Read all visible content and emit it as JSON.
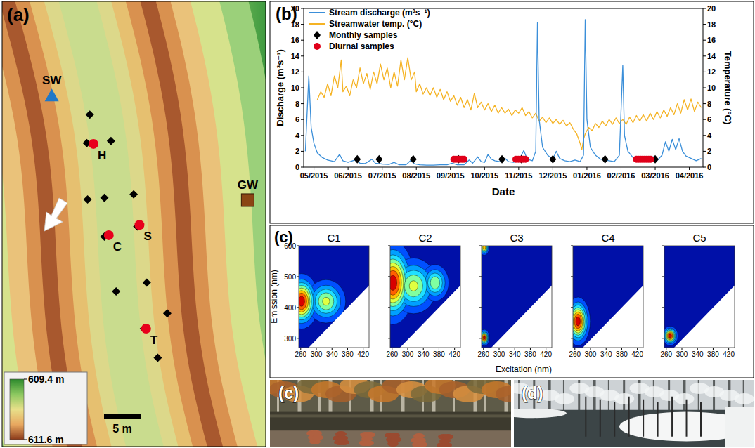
{
  "map": {
    "label": "(a)",
    "colorbar": {
      "ticks": [
        {
          "value": 609.4,
          "label": "609.4 m"
        },
        {
          "value": 611.6,
          "label": "611.6 m"
        }
      ],
      "colors": [
        "#2d8a2d",
        "#8cc860",
        "#e8e08a",
        "#e8a860",
        "#8b3a1a"
      ]
    },
    "scale_bar": {
      "length": 5,
      "label": "5 m"
    },
    "sites": [
      {
        "label": "SW",
        "marker": "triangle",
        "color": "#1f78c8",
        "x": 6.6,
        "y": 13.1
      },
      {
        "label": "GW",
        "marker": "square",
        "color": "#8b4513",
        "x": 33.4,
        "y": 27.4
      },
      {
        "label": "H",
        "marker": "circle",
        "color": "#e8001c",
        "x": 12.3,
        "y": 19.7
      },
      {
        "label": "C",
        "marker": "circle",
        "color": "#e8001c",
        "x": 14.4,
        "y": 32.2
      },
      {
        "label": "S",
        "marker": "circle",
        "color": "#e8001c",
        "x": 18.6,
        "y": 30.8
      },
      {
        "label": "T",
        "marker": "circle",
        "color": "#e8001c",
        "x": 19.5,
        "y": 45.0
      }
    ],
    "wells": [
      [
        11.8,
        15.7
      ],
      [
        11.4,
        19.6
      ],
      [
        14.7,
        19.3
      ],
      [
        11.5,
        27.3
      ],
      [
        13.8,
        27.1
      ],
      [
        17.8,
        26.6
      ],
      [
        13.8,
        32.4
      ],
      [
        18.3,
        31.0
      ],
      [
        15.4,
        39.9
      ],
      [
        19.6,
        38.7
      ],
      [
        22.4,
        42.9
      ],
      [
        19.2,
        45.0
      ],
      [
        21.1,
        49.0
      ]
    ]
  },
  "chart_data": [
    {
      "type": "line",
      "panel_label": "(b)",
      "x_label": "Date",
      "y_label": "Discharge (m³s⁻¹)",
      "y2_label": "Temperature (°C)",
      "xlim": [
        -0.3,
        11.4
      ],
      "xticks": [
        {
          "value": 0,
          "label": "05/2015"
        },
        {
          "value": 1,
          "label": "06/2015"
        },
        {
          "value": 2,
          "label": "07/2015"
        },
        {
          "value": 3,
          "label": "08/2015"
        },
        {
          "value": 4,
          "label": "09/2015"
        },
        {
          "value": 5,
          "label": "10/2015"
        },
        {
          "value": 6,
          "label": "11/2015"
        },
        {
          "value": 7,
          "label": "12/2015"
        },
        {
          "value": 8,
          "label": "01/2016"
        },
        {
          "value": 9,
          "label": "02/2016"
        },
        {
          "value": 10,
          "label": "03/2016"
        },
        {
          "value": 11,
          "label": "04/2016"
        }
      ],
      "ylim": [
        0,
        20
      ],
      "yticks": [
        0,
        2,
        4,
        6,
        8,
        10,
        12,
        14,
        16,
        18,
        20
      ],
      "y2lim": [
        0,
        20
      ],
      "y2ticks": [
        0,
        2,
        4,
        6,
        8,
        10,
        12,
        14,
        16,
        18,
        20
      ],
      "grid": false,
      "legend": "top-left",
      "series": [
        {
          "name": "Stream discharge (m³s⁻¹)",
          "type": "line",
          "color": "#3b8fd9",
          "x": [
            -0.25,
            -0.15,
            -0.08,
            0,
            0.1,
            0.25,
            0.4,
            0.6,
            0.75,
            0.85,
            1.0,
            1.2,
            1.35,
            1.5,
            1.7,
            1.8,
            2.0,
            2.2,
            2.35,
            2.5,
            2.7,
            2.85,
            2.95,
            3.1,
            3.3,
            3.5,
            3.7,
            3.9,
            4.05,
            4.2,
            4.4,
            4.55,
            4.65,
            4.8,
            4.9,
            5.0,
            5.1,
            5.2,
            5.3,
            5.45,
            5.6,
            5.7,
            5.85,
            6.0,
            6.15,
            6.25,
            6.4,
            6.5,
            6.55,
            6.6,
            6.7,
            6.85,
            7.0,
            7.1,
            7.2,
            7.35,
            7.5,
            7.65,
            7.8,
            7.9,
            7.95,
            8.0,
            8.1,
            8.25,
            8.4,
            8.5,
            8.65,
            8.8,
            8.95,
            9.05,
            9.1,
            9.2,
            9.35,
            9.5,
            9.65,
            9.8,
            9.95,
            10.05,
            10.2,
            10.3,
            10.4,
            10.5,
            10.6,
            10.7,
            10.8,
            10.9,
            11.0,
            11.1,
            11.2,
            11.35
          ],
          "values": [
            2.0,
            11.5,
            5,
            3,
            1.8,
            1.2,
            0.9,
            0.7,
            1.6,
            0.8,
            0.6,
            0.9,
            0.5,
            0.45,
            1.0,
            0.5,
            0.4,
            0.35,
            0.6,
            0.3,
            0.3,
            0.9,
            0.4,
            0.3,
            0.25,
            0.25,
            0.3,
            0.3,
            0.5,
            0.3,
            0.3,
            0.9,
            0.5,
            1.3,
            0.7,
            0.6,
            1.6,
            1.0,
            0.8,
            0.7,
            1.1,
            0.7,
            0.6,
            0.8,
            2.1,
            1.0,
            0.8,
            2.0,
            18.2,
            6,
            2.5,
            1.5,
            1.0,
            2.0,
            1.1,
            0.8,
            0.7,
            0.9,
            0.7,
            1.5,
            18.6,
            6,
            2.5,
            1.5,
            1.0,
            0.9,
            0.8,
            0.7,
            1.5,
            12.8,
            4,
            2.0,
            1.2,
            0.9,
            0.8,
            0.7,
            1.3,
            0.8,
            1.5,
            3.2,
            2.0,
            3.5,
            2.2,
            3.6,
            2.0,
            1.4,
            1.2,
            1.0,
            0.8,
            1.1
          ]
        },
        {
          "name": "Streamwater temp. (°C)",
          "type": "line",
          "axis": "y2",
          "color": "#f5b324",
          "x": [
            0.1,
            0.2,
            0.3,
            0.4,
            0.5,
            0.6,
            0.7,
            0.8,
            0.85,
            0.95,
            1.05,
            1.15,
            1.25,
            1.35,
            1.45,
            1.55,
            1.65,
            1.75,
            1.85,
            1.95,
            2.05,
            2.15,
            2.25,
            2.35,
            2.45,
            2.55,
            2.65,
            2.75,
            2.85,
            2.95,
            3.0,
            3.1,
            3.2,
            3.3,
            3.4,
            3.5,
            3.6,
            3.7,
            3.8,
            3.9,
            4.0,
            4.1,
            4.2,
            4.3,
            4.4,
            4.5,
            4.6,
            4.7,
            4.8,
            4.9,
            5.0,
            5.1,
            5.2,
            5.3,
            5.4,
            5.5,
            5.6,
            5.7,
            5.8,
            5.9,
            6.0,
            6.1,
            6.2,
            6.3,
            6.4,
            6.5,
            6.6,
            6.7,
            6.8,
            6.9,
            7.0,
            7.1,
            7.2,
            7.3,
            7.4,
            7.5,
            7.6,
            7.7,
            7.8,
            7.85,
            7.9,
            7.95,
            8.05,
            8.15,
            8.25,
            8.35,
            8.45,
            8.55,
            8.65,
            8.75,
            8.85,
            8.95,
            9.05,
            9.15,
            9.25,
            9.35,
            9.45,
            9.55,
            9.65,
            9.75,
            9.85,
            9.95,
            10.05,
            10.15,
            10.25,
            10.35,
            10.45,
            10.55,
            10.65,
            10.75,
            10.85,
            10.95,
            11.05,
            11.15,
            11.25,
            11.35
          ],
          "values": [
            8.5,
            9.5,
            8.8,
            10.5,
            9,
            11.5,
            10,
            13.5,
            9.5,
            10.2,
            9,
            11,
            10,
            12.5,
            10.5,
            11.8,
            9.8,
            12,
            10.5,
            13,
            11,
            12.5,
            10,
            12,
            10.2,
            13.5,
            11,
            13.8,
            11,
            12,
            9.5,
            10.5,
            9.2,
            10,
            9,
            10,
            8.8,
            9.8,
            8.5,
            9.5,
            8.3,
            9,
            7.8,
            8.8,
            7.5,
            8.5,
            7.2,
            9.3,
            7.5,
            8.2,
            7.2,
            8,
            7,
            7.8,
            6.8,
            7.5,
            6.8,
            7.3,
            6.5,
            7.2,
            6.8,
            7.5,
            6.5,
            7.0,
            6.2,
            6.8,
            5.8,
            6.3,
            5.6,
            6.2,
            5.5,
            6.0,
            5.4,
            5.9,
            5.2,
            5.6,
            4.8,
            4.2,
            3.0,
            2.2,
            3.5,
            4.2,
            5.0,
            4.6,
            5.5,
            5.0,
            5.8,
            5.2,
            6.0,
            5.4,
            6.2,
            5.5,
            6.0,
            5.4,
            6.3,
            5.6,
            6.5,
            5.8,
            6.6,
            5.8,
            6.8,
            6.0,
            7.0,
            6.2,
            7.2,
            6.4,
            7.5,
            6.6,
            8.0,
            6.8,
            8.5,
            7.2,
            8.6,
            7.0,
            8.2,
            7.5
          ]
        },
        {
          "name": "Monthly samples",
          "type": "scatter",
          "marker": "diamond",
          "color": "#000000",
          "x": [
            1.27,
            1.91,
            2.91,
            4.24,
            5.51,
            6.08,
            7.0,
            8.53,
            10.0
          ],
          "values": [
            1,
            1,
            1,
            1,
            1,
            1,
            1,
            1,
            1
          ]
        },
        {
          "name": "Diurnal samples",
          "type": "scatter",
          "marker": "circle",
          "color": "#e0001a",
          "x": [
            4.1,
            4.16,
            4.22,
            4.28,
            4.34,
            4.4,
            5.92,
            5.99,
            6.06,
            6.13,
            6.2,
            9.45,
            9.51,
            9.57,
            9.63,
            9.69,
            9.75,
            9.81,
            9.87
          ],
          "values": [
            1,
            1,
            1,
            1,
            1,
            1,
            1,
            1,
            1,
            1,
            1,
            1,
            1,
            1,
            1,
            1,
            1,
            1,
            1
          ]
        }
      ]
    },
    {
      "type": "contour",
      "title": "C1",
      "xlim": [
        255,
        435
      ],
      "xticks": [
        260,
        300,
        340,
        380,
        420
      ],
      "ylim": [
        270,
        600
      ],
      "yticks": [
        300,
        400,
        500,
        600
      ],
      "peaks": [
        {
          "ex": 262,
          "em": 420,
          "ex_width": 20,
          "em_width": 40,
          "intensity": 1
        },
        {
          "ex": 325,
          "em": 420,
          "ex_width": 25,
          "em_width": 35,
          "intensity": 0.6
        }
      ]
    },
    {
      "type": "contour",
      "title": "C2",
      "xlim": [
        255,
        435
      ],
      "xticks": [
        260,
        300,
        340,
        380,
        420
      ],
      "ylim": [
        270,
        600
      ],
      "yticks": [
        300,
        400,
        500,
        600
      ],
      "tick_labels": "x",
      "peaks": [
        {
          "ex": 262,
          "em": 480,
          "ex_width": 25,
          "em_width": 60,
          "intensity": 1
        },
        {
          "ex": 315,
          "em": 470,
          "ex_width": 30,
          "em_width": 45,
          "intensity": 0.6
        },
        {
          "ex": 370,
          "em": 480,
          "ex_width": 18,
          "em_width": 30,
          "intensity": 0.55
        }
      ]
    },
    {
      "type": "contour",
      "title": "C3",
      "xlim": [
        255,
        435
      ],
      "xticks": [
        260,
        300,
        340,
        380,
        420
      ],
      "ylim": [
        270,
        600
      ],
      "yticks": [
        300,
        400,
        500,
        600
      ],
      "tick_labels": "x",
      "peaks": [
        {
          "ex": 262,
          "em": 302,
          "ex_width": 6,
          "em_width": 12,
          "intensity": 1
        },
        {
          "ex": 262,
          "em": 595,
          "ex_width": 6,
          "em_width": 12,
          "intensity": 0.8
        }
      ]
    },
    {
      "type": "contour",
      "title": "C4",
      "xlim": [
        255,
        435
      ],
      "xticks": [
        260,
        300,
        340,
        380,
        420
      ],
      "ylim": [
        270,
        600
      ],
      "yticks": [
        300,
        400,
        500,
        600
      ],
      "tick_labels": "x",
      "peaks": [
        {
          "ex": 268,
          "em": 355,
          "ex_width": 14,
          "em_width": 35,
          "intensity": 1
        }
      ]
    },
    {
      "type": "contour",
      "title": "C5",
      "xlim": [
        255,
        435
      ],
      "xticks": [
        260,
        300,
        340,
        380,
        420
      ],
      "ylim": [
        270,
        600
      ],
      "yticks": [
        300,
        400,
        500,
        600
      ],
      "tick_labels": "x",
      "peaks": [
        {
          "ex": 270,
          "em": 308,
          "ex_width": 9,
          "em_width": 14,
          "intensity": 1
        }
      ]
    }
  ],
  "eem_panel": {
    "label": "(c)",
    "x_label": "Excitation (nm)",
    "y_label": "Emission (nm)"
  },
  "photos": [
    {
      "label": "(c)"
    },
    {
      "label": "(d)"
    }
  ]
}
